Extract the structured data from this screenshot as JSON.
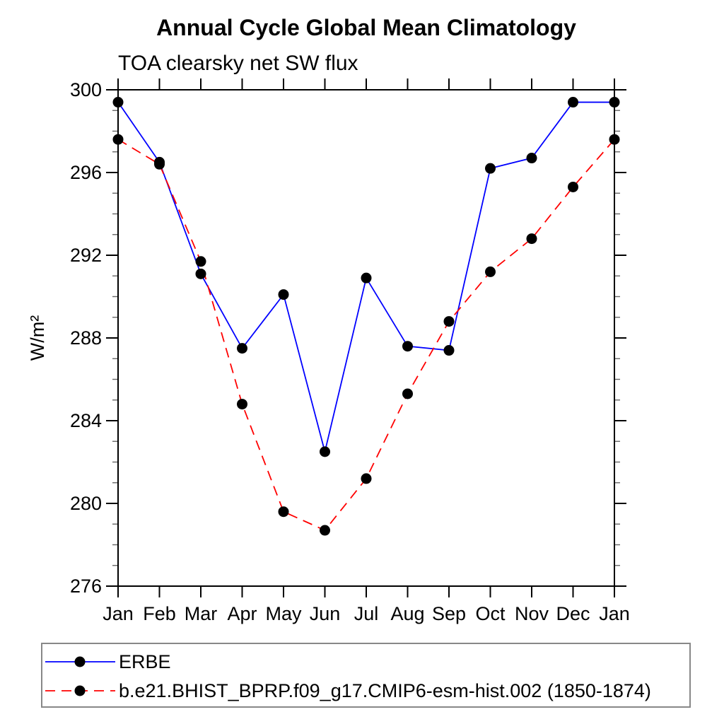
{
  "chart_data": {
    "type": "line",
    "title": "Annual Cycle Global Mean Climatology",
    "subtitle": "TOA clearsky net SW flux",
    "ylabel": "W/m²",
    "xlabel": "",
    "categories": [
      "Jan",
      "Feb",
      "Mar",
      "Apr",
      "May",
      "Jun",
      "Jul",
      "Aug",
      "Sep",
      "Oct",
      "Nov",
      "Dec",
      "Jan"
    ],
    "ylim": [
      276,
      300
    ],
    "ytick_major_step": 4,
    "ytick_minor_step": 1,
    "grid": false,
    "legend_position": "bottom",
    "series": [
      {
        "name": "ERBE",
        "color": "#0000ff",
        "line_style": "solid",
        "marker": "filled-circle",
        "marker_color": "#000000",
        "values": [
          299.4,
          296.5,
          291.1,
          287.5,
          290.1,
          282.5,
          290.9,
          287.6,
          287.4,
          296.2,
          296.7,
          299.4,
          299.4
        ]
      },
      {
        "name": "b.e21.BHIST_BPRP.f09_g17.CMIP6-esm-hist.002 (1850-1874)",
        "color": "#ff0000",
        "line_style": "dashed",
        "marker": "filled-circle",
        "marker_color": "#000000",
        "values": [
          297.6,
          296.4,
          291.7,
          284.8,
          279.6,
          278.7,
          281.2,
          285.3,
          288.8,
          291.2,
          292.8,
          295.3,
          297.6
        ]
      }
    ]
  }
}
